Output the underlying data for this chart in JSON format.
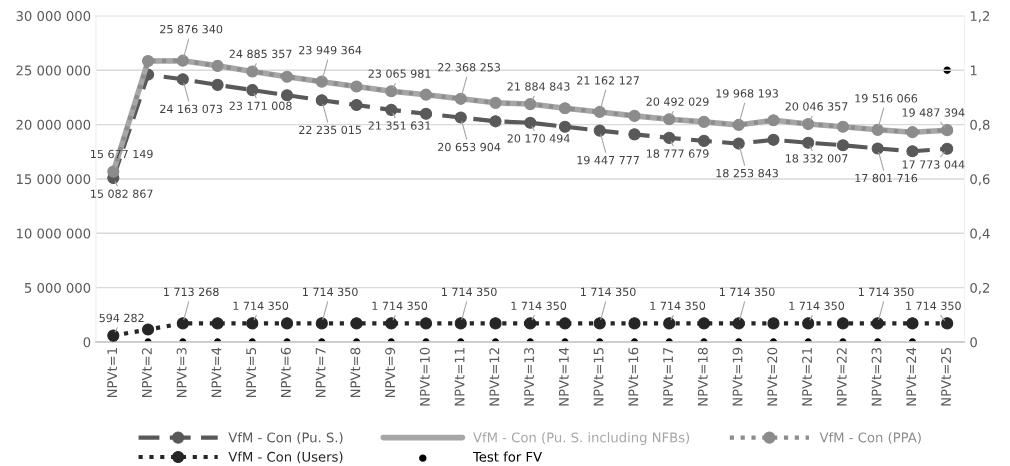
{
  "chart_data": {
    "type": "line",
    "categories": [
      "NPVt=1",
      "NPVt=2",
      "NPVt=3",
      "NPVt=4",
      "NPVt=5",
      "NPVt=6",
      "NPVt=7",
      "NPVt=8",
      "NPVt=9",
      "NPVt=10",
      "NPVt=11",
      "NPVt=12",
      "NPVt=13",
      "NPVt=14",
      "NPVt=15",
      "NPVt=16",
      "NPVt=17",
      "NPVt=18",
      "NPVt=19",
      "NPVt=20",
      "NPVt=21",
      "NPVt=22",
      "NPVt=23",
      "NPVt=24",
      "NPVt=25"
    ],
    "series": [
      {
        "name": "VfM - Con (Pu. S.)",
        "color": "#595959",
        "line_style": "dashed",
        "marker": "circle",
        "values": [
          15082867,
          24600000,
          24163073,
          23650000,
          23171008,
          22700000,
          22235015,
          21800000,
          21351631,
          21000000,
          20653904,
          20300000,
          20170494,
          19800000,
          19447777,
          19100000,
          18777679,
          18500000,
          18253843,
          18600000,
          18332007,
          18100000,
          17801716,
          17550000,
          17773044
        ],
        "value_labels": [
          "15 082 867",
          null,
          "24 163 073",
          null,
          "23 171 008",
          null,
          "22 235 015",
          null,
          "21 351 631",
          null,
          "20 653 904",
          null,
          "20 170 494",
          null,
          "19 447 777",
          null,
          "18 777 679",
          null,
          "18 253 843",
          null,
          "18 332 007",
          null,
          "17 801 716",
          null,
          "17 773 044"
        ]
      },
      {
        "name": "VfM - Con (Pu. S. including NFBs)",
        "color": "#a6a6a6",
        "line_style": "solid",
        "marker": "none",
        "values": [
          15677149,
          25850000,
          25876340,
          25400000,
          24885357,
          24400000,
          23949364,
          23500000,
          23065981,
          22750000,
          22368253,
          22000000,
          21884843,
          21500000,
          21162127,
          20800000,
          20492029,
          20250000,
          19968193,
          20400000,
          20046357,
          19800000,
          19516066,
          19300000,
          19487394
        ],
        "value_labels": [
          "15 677 149",
          null,
          "25 876 340",
          null,
          "24 885 357",
          null,
          "23 949 364",
          null,
          "23 065 981",
          null,
          "22 368 253",
          null,
          "21 884 843",
          null,
          "21 162 127",
          null,
          "20 492 029",
          null,
          "19 968 193",
          null,
          "20 046 357",
          null,
          "19 516 066",
          null,
          "19 487 394"
        ]
      },
      {
        "name": "VfM - Con (PPA)",
        "color": "#8c8c8c",
        "line_style": "dotted",
        "marker": "circle",
        "values": [
          15677149,
          25850000,
          25876340,
          25400000,
          24885357,
          24400000,
          23949364,
          23500000,
          23065981,
          22750000,
          22368253,
          22000000,
          21884843,
          21500000,
          21162127,
          20800000,
          20492029,
          20250000,
          19968193,
          20400000,
          20046357,
          19800000,
          19516066,
          19300000,
          19487394
        ]
      },
      {
        "name": "VfM - Con (Users)",
        "color": "#262626",
        "line_style": "dotted",
        "marker": "circle",
        "values": [
          594282,
          1150000,
          1713268,
          1714350,
          1714350,
          1714350,
          1714350,
          1714350,
          1714350,
          1714350,
          1714350,
          1714350,
          1714350,
          1714350,
          1714350,
          1714350,
          1714350,
          1714350,
          1714350,
          1714350,
          1714350,
          1714350,
          1714350,
          1714350,
          1714350
        ],
        "value_labels": [
          "594 282",
          null,
          "1 713 268",
          null,
          "1 714 350",
          null,
          "1 714 350",
          null,
          "1 714 350",
          null,
          "1 714 350",
          null,
          "1 714 350",
          null,
          "1 714 350",
          null,
          "1 714 350",
          null,
          "1 714 350",
          null,
          "1 714 350",
          null,
          "1 714 350",
          null,
          "1 714 350"
        ]
      },
      {
        "name": "Test for FV",
        "type": "scatter",
        "axis": "y2",
        "color": "#000000",
        "marker": "circle",
        "values": [
          0,
          0,
          0,
          0,
          0,
          0,
          0,
          0,
          0,
          0,
          0,
          0,
          0,
          0,
          0,
          0,
          0,
          0,
          0,
          0,
          0,
          0,
          0,
          0,
          1
        ]
      }
    ],
    "ylim": [
      0,
      30000000
    ],
    "yticks": [
      0,
      {
        "value": 5000000,
        "label": "5 000 000"
      },
      {
        "value": 10000000,
        "label": "10 000 000"
      },
      {
        "value": 15000000,
        "label": "15 000 000"
      },
      {
        "value": 20000000,
        "label": "20 000 000"
      },
      {
        "value": 25000000,
        "label": "25 000 000"
      },
      {
        "value": 30000000,
        "label": "30 000 000"
      }
    ],
    "y2lim": [
      0,
      1.2
    ],
    "y2ticks": [
      0,
      {
        "value": 0.2,
        "label": "0,2"
      },
      {
        "value": 0.4,
        "label": "0,4"
      },
      {
        "value": 0.6,
        "label": "0,6"
      },
      {
        "value": 0.8,
        "label": "0,8"
      },
      1,
      {
        "value": 1.2,
        "label": "1,2"
      }
    ],
    "grid": "y",
    "legend": "bottom"
  }
}
